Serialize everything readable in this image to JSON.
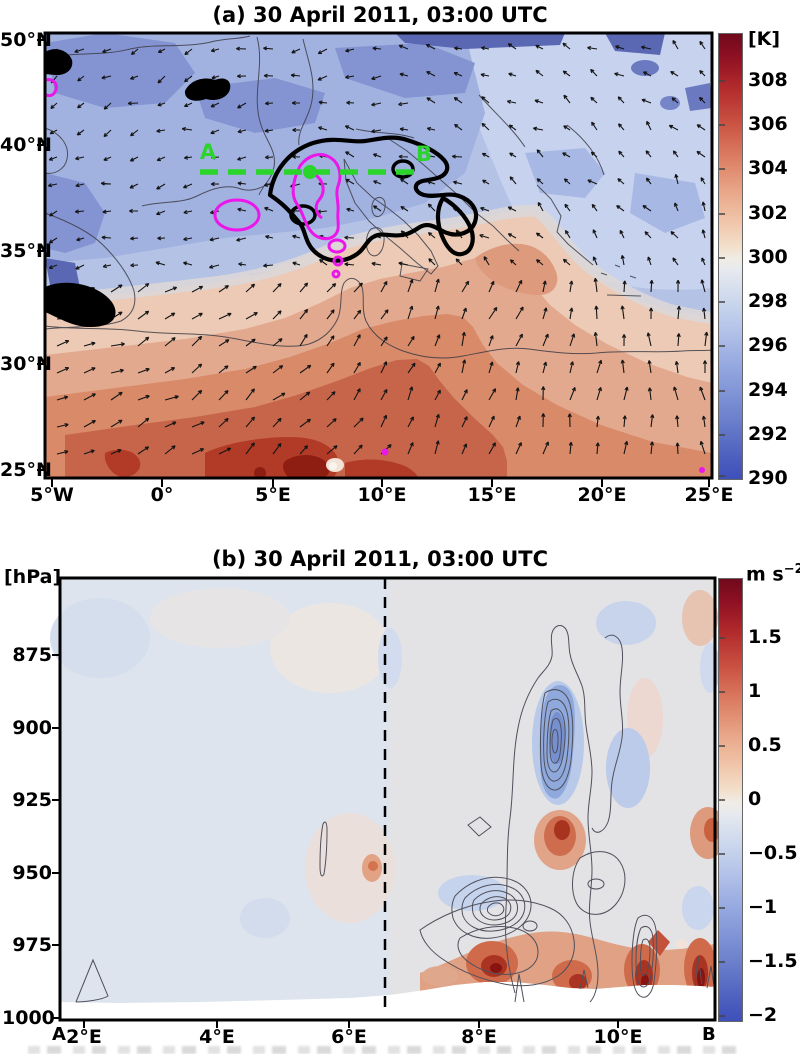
{
  "figure": {
    "panel_a": {
      "title": "(a) 30 April 2011, 03:00 UTC",
      "colorbar_unit": "[K]",
      "colorbar_ticks": [
        "308",
        "306",
        "304",
        "302",
        "300",
        "298",
        "296",
        "294",
        "292",
        "290"
      ],
      "y_tick_labels": [
        "50°N",
        "40°N",
        "35°N",
        "30°N",
        "25°N"
      ],
      "x_tick_labels": [
        "5°W",
        "0°",
        "5°E",
        "10°E",
        "15°E",
        "20°E",
        "25°E"
      ],
      "section_label_a": "A",
      "section_label_b": "B"
    },
    "panel_b": {
      "title": "(b) 30 April 2011, 03:00 UTC",
      "y_axis_unit": "[hPa]",
      "colorbar_unit_base": "m s",
      "colorbar_unit_exp": "−2",
      "colorbar_ticks": [
        "1.5",
        "1",
        "0.5",
        "0",
        "−0.5",
        "−1",
        "−1.5",
        "−2"
      ],
      "y_tick_labels": [
        "875",
        "900",
        "925",
        "950",
        "975",
        "1000"
      ],
      "x_tick_labels": [
        "2°E",
        "4°E",
        "6°E",
        "8°E",
        "10°E"
      ],
      "endpoint_a": "A",
      "endpoint_b": "B"
    }
  },
  "colors": {
    "colorbar_top": "#70091c",
    "colorbar_mid": "#f0ece5",
    "colorbar_bottom": "#3e50ba",
    "green_section_line": "#2bd42b",
    "magenta_contour": "#ea16ea",
    "bold_contour": "#000000",
    "thin_contour": "#50505c"
  },
  "wind_arrows": {
    "col_spacing": 27,
    "row_spacing": 27,
    "color": "#151515"
  },
  "chart_data": [
    {
      "type": "heatmap",
      "panel": "a",
      "title": "(a) 30 April 2011, 03:00 UTC",
      "value_unit": "K",
      "colorbar_range": [
        290,
        310
      ],
      "colorbar_ticks": [
        290,
        292,
        294,
        296,
        298,
        300,
        302,
        304,
        306,
        308
      ],
      "x_axis": {
        "tick_labels": [
          "5°W",
          "0°",
          "5°E",
          "10°E",
          "15°E",
          "20°E",
          "25°E"
        ],
        "range_deg_east": [
          -5,
          25
        ]
      },
      "y_axis": {
        "tick_labels": [
          "50°N",
          "40°N",
          "35°N",
          "30°N",
          "25°N"
        ],
        "range_deg_north": [
          25,
          50
        ]
      },
      "grid_lon_deg_east": [
        -5,
        0,
        5,
        10,
        15,
        20,
        25
      ],
      "grid_lat_deg_north": [
        50,
        45,
        40,
        35,
        30,
        25
      ],
      "values_K": [
        [
          294,
          294,
          295,
          296,
          295,
          295,
          296
        ],
        [
          293,
          293,
          294,
          295,
          296,
          296,
          296
        ],
        [
          294,
          294,
          295,
          296,
          297,
          296,
          297
        ],
        [
          296,
          297,
          298,
          300,
          299,
          298,
          298
        ],
        [
          299,
          301,
          303,
          303,
          302,
          300,
          299
        ],
        [
          302,
          305,
          307,
          306,
          304,
          302,
          301
        ]
      ],
      "overlays": [
        {
          "name": "wind-vectors",
          "style": "small black arrows, northeasterly flow over north Africa, weak westerly flow over Europe"
        },
        {
          "name": "bold-black-contour",
          "description": "thick black outline between about 2°E–12°E and 37°N–40°N plus small cells near 3°W 48°N and at the western edge"
        },
        {
          "name": "magenta-contours",
          "description": "cells near 5°E–8°E, 36°N–39°N and a small cell near 1°E 37°N"
        },
        {
          "name": "cross-section-line",
          "label_start": "A",
          "label_end": "B",
          "lat_deg_north": 38.7,
          "lon_range_deg_east": [
            2.3,
            12.2
          ],
          "color": "green",
          "style": "dashed with mid-point dot"
        }
      ],
      "legend_position": "right colorbar"
    },
    {
      "type": "heatmap",
      "panel": "b",
      "title": "(b) 30 April 2011, 03:00 UTC",
      "value_unit": "m s⁻²",
      "colorbar_range": [
        -2,
        2
      ],
      "colorbar_ticks": [
        -2,
        -1.5,
        -1,
        -0.5,
        0,
        0.5,
        1,
        1.5
      ],
      "x_axis": {
        "tick_labels": [
          "2°E",
          "4°E",
          "6°E",
          "8°E",
          "10°E"
        ],
        "endpoint_labels": [
          "A",
          "B"
        ],
        "range_deg_east": [
          1.6,
          11.5
        ]
      },
      "y_axis": {
        "unit": "hPa",
        "tick_labels": [
          875,
          900,
          925,
          950,
          975,
          1000
        ],
        "range_hPa": [
          850,
          1000
        ],
        "inverted": true
      },
      "grid_lon_deg_east": [
        2,
        4,
        6,
        8,
        9,
        10,
        11
      ],
      "grid_pressure_hPa": [
        875,
        900,
        925,
        950,
        975
      ],
      "values_ms2": [
        [
          0,
          0,
          0,
          0,
          0.1,
          -0.3,
          0.2
        ],
        [
          0,
          0,
          0,
          0.1,
          -0.8,
          0.1,
          0.1
        ],
        [
          0,
          0,
          0.1,
          0.3,
          -0.4,
          -0.2,
          0.3
        ],
        [
          0,
          0.1,
          0.4,
          0.6,
          1.3,
          0.4,
          0.9
        ],
        [
          0.1,
          0.1,
          0.3,
          1.6,
          1.0,
          1.4,
          1.9
        ]
      ],
      "overlays": [
        {
          "name": "dashed-vertical-line",
          "lon_deg_east": 6.6
        },
        {
          "name": "thin-black-contours",
          "description": "nested cells mainly between 7.5°E–11°E and 900–1000 hPa"
        },
        {
          "name": "terrain",
          "description": "white orography silhouette near 1000 hPa, rising slightly east of 7°E"
        }
      ],
      "legend_position": "right colorbar"
    }
  ]
}
